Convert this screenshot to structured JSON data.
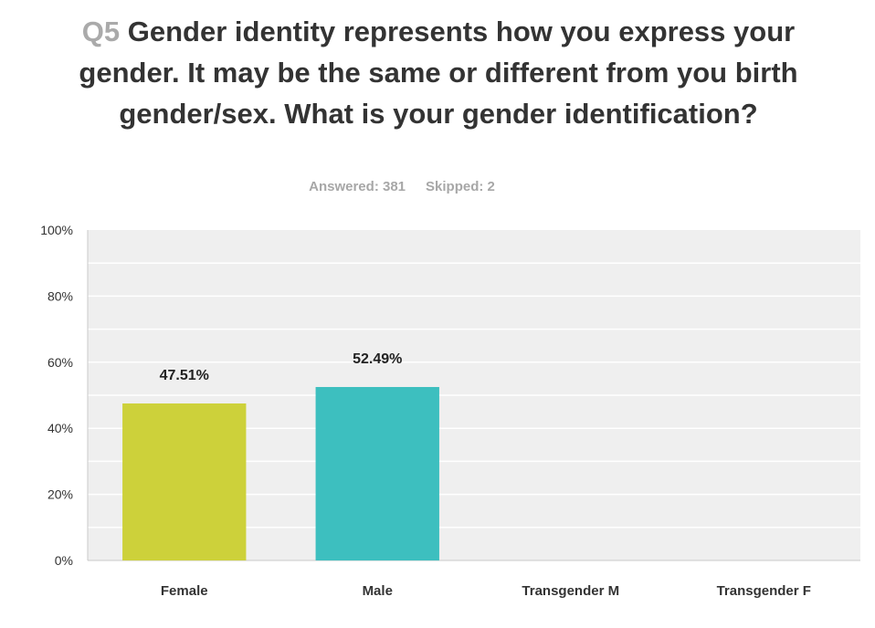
{
  "title": {
    "question_number": "Q5",
    "text": "Gender identity represents how you express your gender. It may be the same or different from you birth gender/sex. What is your gender identification?"
  },
  "stats": {
    "answered": "Answered: 381",
    "skipped": "Skipped: 2"
  },
  "colors": {
    "plot_background": "#efefef",
    "gridline": "#ffffff",
    "axis_line": "#c8c8c8",
    "female_bar": "#cdd13a",
    "male_bar": "#3dbfbf"
  },
  "chart_data": {
    "type": "bar",
    "title": "Gender identity represents how you express your gender. It may be the same or different from you birth gender/sex. What is your gender identification?",
    "categories": [
      "Female",
      "Male",
      "Transgender M",
      "Transgender F"
    ],
    "values": [
      47.51,
      52.49,
      0,
      0
    ],
    "data_labels": [
      "47.51%",
      "52.49%",
      "",
      ""
    ],
    "bar_colors": [
      "#cdd13a",
      "#3dbfbf",
      "",
      ""
    ],
    "ylim": [
      0,
      100
    ],
    "yticks": [
      0,
      20,
      40,
      60,
      80,
      100
    ],
    "ytick_labels": [
      "0%",
      "20%",
      "40%",
      "60%",
      "80%",
      "100%"
    ],
    "grid": true,
    "xlabel": "",
    "ylabel": ""
  }
}
